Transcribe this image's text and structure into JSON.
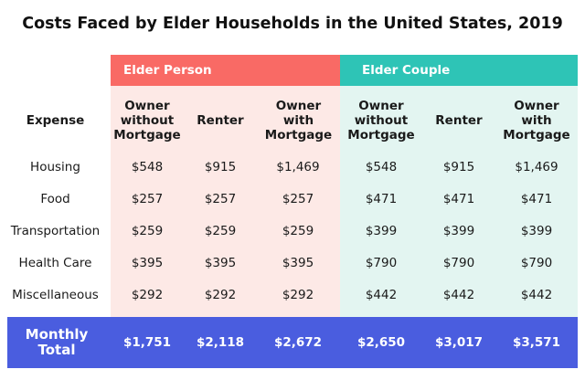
{
  "title": "Costs Faced by Elder Households in the United States, 2019",
  "groups": {
    "person": "Elder Person",
    "couple": "Elder Couple"
  },
  "columns": {
    "expense": "Expense",
    "c1": "Owner\nwithout\nMortgage",
    "c2": "Renter",
    "c3": "Owner\nwith\nMortgage",
    "c4": "Owner\nwithout\nMortgage",
    "c5": "Renter",
    "c6": "Owner\nwith\nMortgage"
  },
  "rows": [
    {
      "label": "Housing",
      "v": [
        "$548",
        "$915",
        "$1,469",
        "$548",
        "$915",
        "$1,469"
      ]
    },
    {
      "label": "Food",
      "v": [
        "$257",
        "$257",
        "$257",
        "$471",
        "$471",
        "$471"
      ]
    },
    {
      "label": "Transportation",
      "v": [
        "$259",
        "$259",
        "$259",
        "$399",
        "$399",
        "$399"
      ]
    },
    {
      "label": "Health Care",
      "v": [
        "$395",
        "$395",
        "$395",
        "$790",
        "$790",
        "$790"
      ]
    },
    {
      "label": "Miscellaneous",
      "v": [
        "$292",
        "$292",
        "$292",
        "$442",
        "$442",
        "$442"
      ]
    }
  ],
  "total": {
    "label": "Monthly\nTotal",
    "v": [
      "$1,751",
      "$2,118",
      "$2,672",
      "$2,650",
      "$3,017",
      "$3,571"
    ]
  },
  "colors": {
    "person_header": "#f96a65",
    "person_band": "#fde9e6",
    "couple_header": "#2ec4b6",
    "couple_band": "#e3f5f1",
    "total_bar": "#4a5ddf"
  }
}
